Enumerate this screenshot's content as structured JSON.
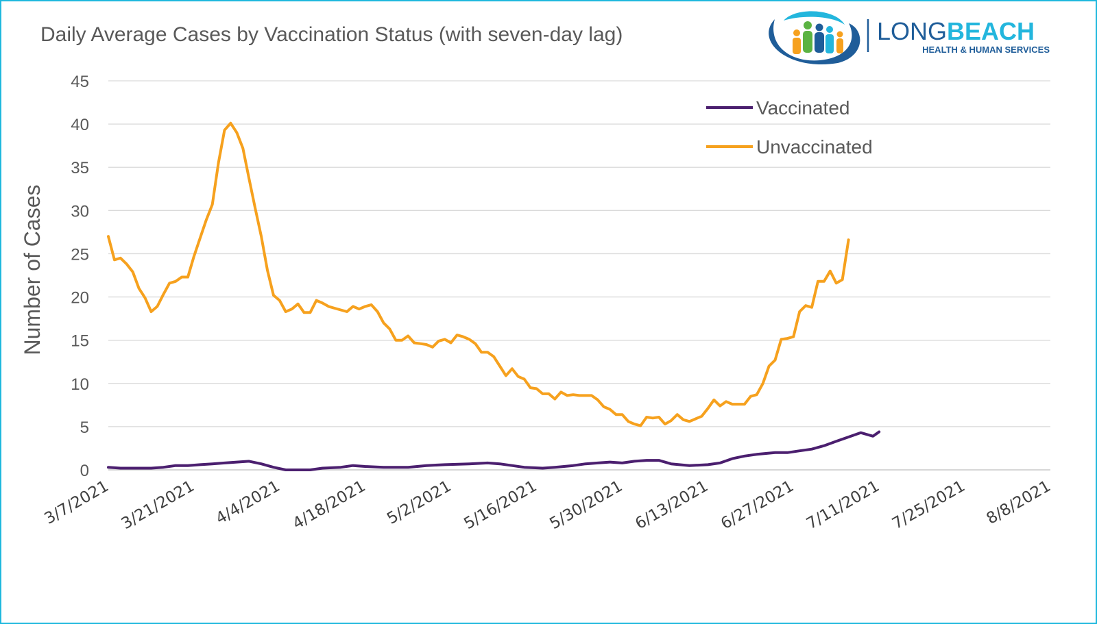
{
  "chart_data": {
    "type": "line",
    "title": "Daily Average Cases by Vaccination Status (with seven-day lag)",
    "ylabel": "Number of Cases",
    "xlabel": "",
    "ylim": [
      0,
      45
    ],
    "y_ticks": [
      "0",
      "5",
      "10",
      "15",
      "20",
      "25",
      "30",
      "35",
      "40",
      "45"
    ],
    "x_tick_labels": [
      "3/7/2021",
      "3/21/2021",
      "4/4/2021",
      "4/18/2021",
      "5/2/2021",
      "5/16/2021",
      "5/30/2021",
      "6/13/2021",
      "6/27/2021",
      "7/11/2021",
      "7/25/2021",
      "8/8/2021"
    ],
    "x_range": [
      "3/7/2021",
      "8/8/2021"
    ],
    "grid": true,
    "legend_position": "top-right",
    "series": [
      {
        "name": "Vaccinated",
        "color": "#4b1f6f",
        "points": [
          [
            "3/7/2021",
            0.3
          ],
          [
            "3/9/2021",
            0.2
          ],
          [
            "3/12/2021",
            0.2
          ],
          [
            "3/14/2021",
            0.2
          ],
          [
            "3/16/2021",
            0.3
          ],
          [
            "3/18/2021",
            0.5
          ],
          [
            "3/20/2021",
            0.5
          ],
          [
            "3/22/2021",
            0.6
          ],
          [
            "3/24/2021",
            0.7
          ],
          [
            "3/26/2021",
            0.8
          ],
          [
            "3/28/2021",
            0.9
          ],
          [
            "3/30/2021",
            1.0
          ],
          [
            "4/1/2021",
            0.7
          ],
          [
            "4/3/2021",
            0.3
          ],
          [
            "4/5/2021",
            0.0
          ],
          [
            "4/9/2021",
            0.0
          ],
          [
            "4/11/2021",
            0.2
          ],
          [
            "4/14/2021",
            0.3
          ],
          [
            "4/16/2021",
            0.5
          ],
          [
            "4/18/2021",
            0.4
          ],
          [
            "4/21/2021",
            0.3
          ],
          [
            "4/25/2021",
            0.3
          ],
          [
            "4/28/2021",
            0.5
          ],
          [
            "5/1/2021",
            0.6
          ],
          [
            "5/5/2021",
            0.7
          ],
          [
            "5/8/2021",
            0.8
          ],
          [
            "5/10/2021",
            0.7
          ],
          [
            "5/12/2021",
            0.5
          ],
          [
            "5/14/2021",
            0.3
          ],
          [
            "5/17/2021",
            0.2
          ],
          [
            "5/19/2021",
            0.3
          ],
          [
            "5/22/2021",
            0.5
          ],
          [
            "5/24/2021",
            0.7
          ],
          [
            "5/26/2021",
            0.8
          ],
          [
            "5/28/2021",
            0.9
          ],
          [
            "5/30/2021",
            0.8
          ],
          [
            "6/1/2021",
            1.0
          ],
          [
            "6/3/2021",
            1.1
          ],
          [
            "6/5/2021",
            1.1
          ],
          [
            "6/7/2021",
            0.7
          ],
          [
            "6/10/2021",
            0.5
          ],
          [
            "6/13/2021",
            0.6
          ],
          [
            "6/15/2021",
            0.8
          ],
          [
            "6/17/2021",
            1.3
          ],
          [
            "6/19/2021",
            1.6
          ],
          [
            "6/21/2021",
            1.8
          ],
          [
            "6/24/2021",
            2.0
          ],
          [
            "6/26/2021",
            2.0
          ],
          [
            "6/28/2021",
            2.2
          ],
          [
            "6/30/2021",
            2.4
          ],
          [
            "7/2/2021",
            2.8
          ],
          [
            "7/4/2021",
            3.3
          ],
          [
            "7/6/2021",
            3.8
          ],
          [
            "7/8/2021",
            4.3
          ],
          [
            "7/10/2021",
            3.9
          ],
          [
            "7/11/2021",
            4.4
          ]
        ]
      },
      {
        "name": "Unvaccinated",
        "color": "#f6a11e",
        "points": [
          [
            "3/7/2021",
            27.0
          ],
          [
            "3/8/2021",
            24.3
          ],
          [
            "3/9/2021",
            24.5
          ],
          [
            "3/10/2021",
            23.8
          ],
          [
            "3/11/2021",
            22.9
          ],
          [
            "3/12/2021",
            21.0
          ],
          [
            "3/13/2021",
            19.9
          ],
          [
            "3/14/2021",
            18.3
          ],
          [
            "3/15/2021",
            18.9
          ],
          [
            "3/16/2021",
            20.3
          ],
          [
            "3/17/2021",
            21.6
          ],
          [
            "3/18/2021",
            21.8
          ],
          [
            "3/19/2021",
            22.3
          ],
          [
            "3/20/2021",
            22.3
          ],
          [
            "3/21/2021",
            24.7
          ],
          [
            "3/22/2021",
            26.8
          ],
          [
            "3/23/2021",
            28.9
          ],
          [
            "3/24/2021",
            30.7
          ],
          [
            "3/25/2021",
            35.5
          ],
          [
            "3/26/2021",
            39.3
          ],
          [
            "3/27/2021",
            40.1
          ],
          [
            "3/28/2021",
            39.0
          ],
          [
            "3/29/2021",
            37.2
          ],
          [
            "3/30/2021",
            33.7
          ],
          [
            "3/31/2021",
            30.3
          ],
          [
            "4/1/2021",
            27.0
          ],
          [
            "4/2/2021",
            23.1
          ],
          [
            "4/3/2021",
            20.2
          ],
          [
            "4/4/2021",
            19.6
          ],
          [
            "4/5/2021",
            18.3
          ],
          [
            "4/6/2021",
            18.6
          ],
          [
            "4/7/2021",
            19.2
          ],
          [
            "4/8/2021",
            18.2
          ],
          [
            "4/9/2021",
            18.2
          ],
          [
            "4/10/2021",
            19.6
          ],
          [
            "4/11/2021",
            19.3
          ],
          [
            "4/12/2021",
            18.9
          ],
          [
            "4/13/2021",
            18.7
          ],
          [
            "4/14/2021",
            18.5
          ],
          [
            "4/15/2021",
            18.3
          ],
          [
            "4/16/2021",
            18.9
          ],
          [
            "4/17/2021",
            18.6
          ],
          [
            "4/18/2021",
            18.9
          ],
          [
            "4/19/2021",
            19.1
          ],
          [
            "4/20/2021",
            18.3
          ],
          [
            "4/21/2021",
            17.0
          ],
          [
            "4/22/2021",
            16.3
          ],
          [
            "4/23/2021",
            15.0
          ],
          [
            "4/24/2021",
            15.0
          ],
          [
            "4/25/2021",
            15.5
          ],
          [
            "4/26/2021",
            14.7
          ],
          [
            "4/27/2021",
            14.6
          ],
          [
            "4/28/2021",
            14.5
          ],
          [
            "4/29/2021",
            14.2
          ],
          [
            "4/30/2021",
            14.9
          ],
          [
            "5/1/2021",
            15.1
          ],
          [
            "5/2/2021",
            14.7
          ],
          [
            "5/3/2021",
            15.6
          ],
          [
            "5/4/2021",
            15.4
          ],
          [
            "5/5/2021",
            15.1
          ],
          [
            "5/6/2021",
            14.6
          ],
          [
            "5/7/2021",
            13.6
          ],
          [
            "5/8/2021",
            13.6
          ],
          [
            "5/9/2021",
            13.1
          ],
          [
            "5/10/2021",
            12.0
          ],
          [
            "5/11/2021",
            10.9
          ],
          [
            "5/12/2021",
            11.7
          ],
          [
            "5/13/2021",
            10.8
          ],
          [
            "5/14/2021",
            10.5
          ],
          [
            "5/15/2021",
            9.5
          ],
          [
            "5/16/2021",
            9.4
          ],
          [
            "5/17/2021",
            8.8
          ],
          [
            "5/18/2021",
            8.8
          ],
          [
            "5/19/2021",
            8.2
          ],
          [
            "5/20/2021",
            9.0
          ],
          [
            "5/21/2021",
            8.6
          ],
          [
            "5/22/2021",
            8.7
          ],
          [
            "5/23/2021",
            8.6
          ],
          [
            "5/24/2021",
            8.6
          ],
          [
            "5/25/2021",
            8.6
          ],
          [
            "5/26/2021",
            8.1
          ],
          [
            "5/27/2021",
            7.3
          ],
          [
            "5/28/2021",
            7.0
          ],
          [
            "5/29/2021",
            6.4
          ],
          [
            "5/30/2021",
            6.4
          ],
          [
            "5/31/2021",
            5.6
          ],
          [
            "6/1/2021",
            5.3
          ],
          [
            "6/2/2021",
            5.1
          ],
          [
            "6/3/2021",
            6.1
          ],
          [
            "6/4/2021",
            6.0
          ],
          [
            "6/5/2021",
            6.1
          ],
          [
            "6/6/2021",
            5.3
          ],
          [
            "6/7/2021",
            5.7
          ],
          [
            "6/8/2021",
            6.4
          ],
          [
            "6/9/2021",
            5.8
          ],
          [
            "6/10/2021",
            5.6
          ],
          [
            "6/11/2021",
            5.9
          ],
          [
            "6/12/2021",
            6.2
          ],
          [
            "6/13/2021",
            7.1
          ],
          [
            "6/14/2021",
            8.1
          ],
          [
            "6/15/2021",
            7.4
          ],
          [
            "6/16/2021",
            7.9
          ],
          [
            "6/17/2021",
            7.6
          ],
          [
            "6/18/2021",
            7.6
          ],
          [
            "6/19/2021",
            7.6
          ],
          [
            "6/20/2021",
            8.5
          ],
          [
            "6/21/2021",
            8.7
          ],
          [
            "6/22/2021",
            10.0
          ],
          [
            "6/23/2021",
            12.0
          ],
          [
            "6/24/2021",
            12.7
          ],
          [
            "6/25/2021",
            15.1
          ],
          [
            "6/26/2021",
            15.2
          ],
          [
            "6/27/2021",
            15.4
          ],
          [
            "6/28/2021",
            18.3
          ],
          [
            "6/29/2021",
            19.0
          ],
          [
            "6/30/2021",
            18.8
          ],
          [
            "7/1/2021",
            21.8
          ],
          [
            "7/2/2021",
            21.8
          ],
          [
            "7/3/2021",
            23.0
          ],
          [
            "7/4/2021",
            21.6
          ],
          [
            "7/5/2021",
            22.0
          ],
          [
            "7/6/2021",
            26.6
          ]
        ]
      }
    ]
  },
  "logo": {
    "word_long": "LONG",
    "word_beach": "BEACH",
    "tagline": "HEALTH & HUMAN SERVICES"
  },
  "colors": {
    "frame": "#1fb8de",
    "vaccinated": "#4b1f6f",
    "unvaccinated": "#f6a11e",
    "logo_blue": "#1f5d99",
    "logo_cyan": "#23b6dd"
  }
}
